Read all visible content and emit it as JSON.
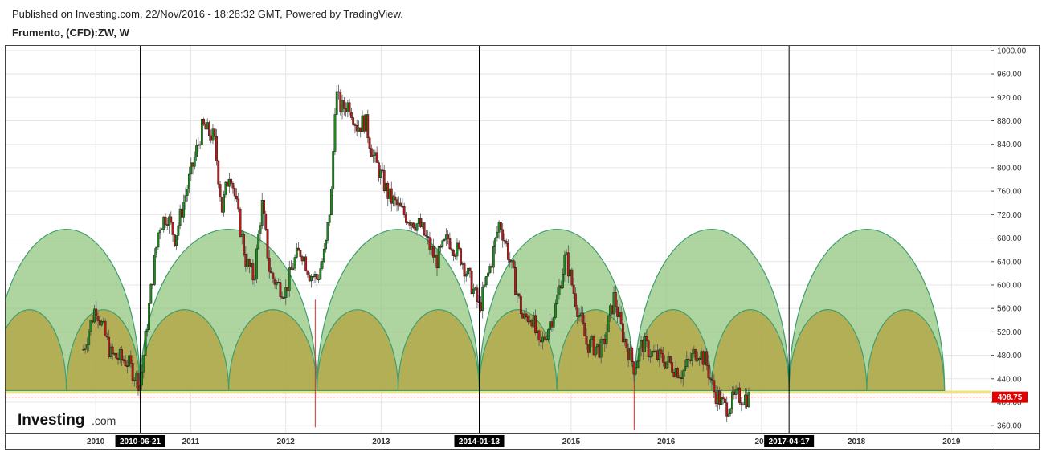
{
  "header": {
    "published": "Published on Investing.com, 22/Nov/2016 - 18:28:32 GMT, Powered by TradingView.",
    "symbol": "Frumento, (CFD):ZW, W"
  },
  "logo": {
    "main": "Investing",
    "suffix": ".com"
  },
  "colors": {
    "up": "#1f8a1f",
    "down": "#b71c1c",
    "arc_outer_fill": "#8fc37a",
    "arc_inner_fill": "#b4a84a",
    "arc_stroke": "#3e9e6e",
    "base_band": "#f0e08a",
    "price_tag": "#e00000",
    "marker_bg": "#000000"
  },
  "chart_data": {
    "type": "candlestick",
    "xlim": [
      "2009-01-20",
      "2019-05-31"
    ],
    "ylim": [
      348,
      1008
    ],
    "y_ticks": [
      "360.00",
      "400.00",
      "440.00",
      "480.00",
      "520.00",
      "560.00",
      "600.00",
      "640.00",
      "680.00",
      "720.00",
      "760.00",
      "800.00",
      "840.00",
      "880.00",
      "920.00",
      "960.00",
      "1000.00"
    ],
    "x_ticks": [
      {
        "label": "2010",
        "date": "2010-01-01"
      },
      {
        "label": "2011",
        "date": "2011-01-01"
      },
      {
        "label": "2012",
        "date": "2012-01-01"
      },
      {
        "label": "2013",
        "date": "2013-01-01"
      },
      {
        "label": "2015",
        "date": "2015-01-01"
      },
      {
        "label": "2016",
        "date": "2016-01-01"
      },
      {
        "label": "201",
        "date": "2017-01-01"
      },
      {
        "label": "2018",
        "date": "2018-01-01"
      },
      {
        "label": "2019",
        "date": "2019-01-01"
      }
    ],
    "markers": [
      {
        "label": "2010-06-21",
        "date": "2010-06-21"
      },
      {
        "label": "2014-01-13",
        "date": "2014-01-13"
      },
      {
        "label": "2017-04-17",
        "date": "2017-04-17"
      }
    ],
    "last_price": {
      "label": "408.75",
      "value": 408.75
    },
    "cycle_band": {
      "base": 420,
      "outer_top": 695,
      "inner_top": 558
    },
    "cycle_anchors": [
      "2008-12-01",
      "2010-06-21",
      "2012-04-30",
      "2014-01-13",
      "2015-09-01",
      "2017-04-17",
      "2018-12-05"
    ],
    "spikes": [
      {
        "date": "2012-04-23",
        "low": 357,
        "high": 575
      },
      {
        "date": "2015-08-31",
        "low": 352,
        "high": 462
      }
    ],
    "price_path": [
      [
        "2009-11-15",
        490
      ],
      [
        "2010-01-01",
        565
      ],
      [
        "2010-03-01",
        480
      ],
      [
        "2010-05-01",
        470
      ],
      [
        "2010-06-21",
        430
      ],
      [
        "2010-08-01",
        590
      ],
      [
        "2010-09-01",
        700
      ],
      [
        "2010-10-01",
        720
      ],
      [
        "2010-11-01",
        680
      ],
      [
        "2011-01-01",
        790
      ],
      [
        "2011-02-15",
        870
      ],
      [
        "2011-04-01",
        850
      ],
      [
        "2011-05-01",
        730
      ],
      [
        "2011-06-01",
        800
      ],
      [
        "2011-07-01",
        720
      ],
      [
        "2011-08-01",
        640
      ],
      [
        "2011-09-01",
        610
      ],
      [
        "2011-10-01",
        740
      ],
      [
        "2011-11-01",
        620
      ],
      [
        "2011-12-01",
        600
      ],
      [
        "2012-01-01",
        590
      ],
      [
        "2012-02-01",
        640
      ],
      [
        "2012-03-01",
        660
      ],
      [
        "2012-04-01",
        620
      ],
      [
        "2012-05-01",
        610
      ],
      [
        "2012-06-01",
        660
      ],
      [
        "2012-06-25",
        760
      ],
      [
        "2012-07-10",
        930
      ],
      [
        "2012-08-01",
        900
      ],
      [
        "2012-09-01",
        910
      ],
      [
        "2012-10-01",
        870
      ],
      [
        "2012-11-01",
        880
      ],
      [
        "2012-12-01",
        820
      ],
      [
        "2013-02-01",
        750
      ],
      [
        "2013-04-01",
        720
      ],
      [
        "2013-06-01",
        700
      ],
      [
        "2013-08-01",
        640
      ],
      [
        "2013-09-15",
        680
      ],
      [
        "2013-11-01",
        650
      ],
      [
        "2013-12-15",
        600
      ],
      [
        "2014-01-13",
        560
      ],
      [
        "2014-03-01",
        640
      ],
      [
        "2014-04-01",
        710
      ],
      [
        "2014-05-01",
        660
      ],
      [
        "2014-06-01",
        600
      ],
      [
        "2014-07-01",
        540
      ],
      [
        "2014-08-01",
        550
      ],
      [
        "2014-09-01",
        490
      ],
      [
        "2014-11-01",
        560
      ],
      [
        "2014-12-10",
        650
      ],
      [
        "2015-01-15",
        580
      ],
      [
        "2015-03-01",
        500
      ],
      [
        "2015-05-01",
        490
      ],
      [
        "2015-06-15",
        580
      ],
      [
        "2015-07-15",
        520
      ],
      [
        "2015-08-31",
        460
      ],
      [
        "2015-10-01",
        500
      ],
      [
        "2015-11-15",
        480
      ],
      [
        "2016-01-01",
        470
      ],
      [
        "2016-03-01",
        450
      ],
      [
        "2016-05-01",
        490
      ],
      [
        "2016-06-01",
        470
      ],
      [
        "2016-07-01",
        420
      ],
      [
        "2016-08-15",
        390
      ],
      [
        "2016-10-01",
        410
      ],
      [
        "2016-11-15",
        408
      ]
    ]
  }
}
